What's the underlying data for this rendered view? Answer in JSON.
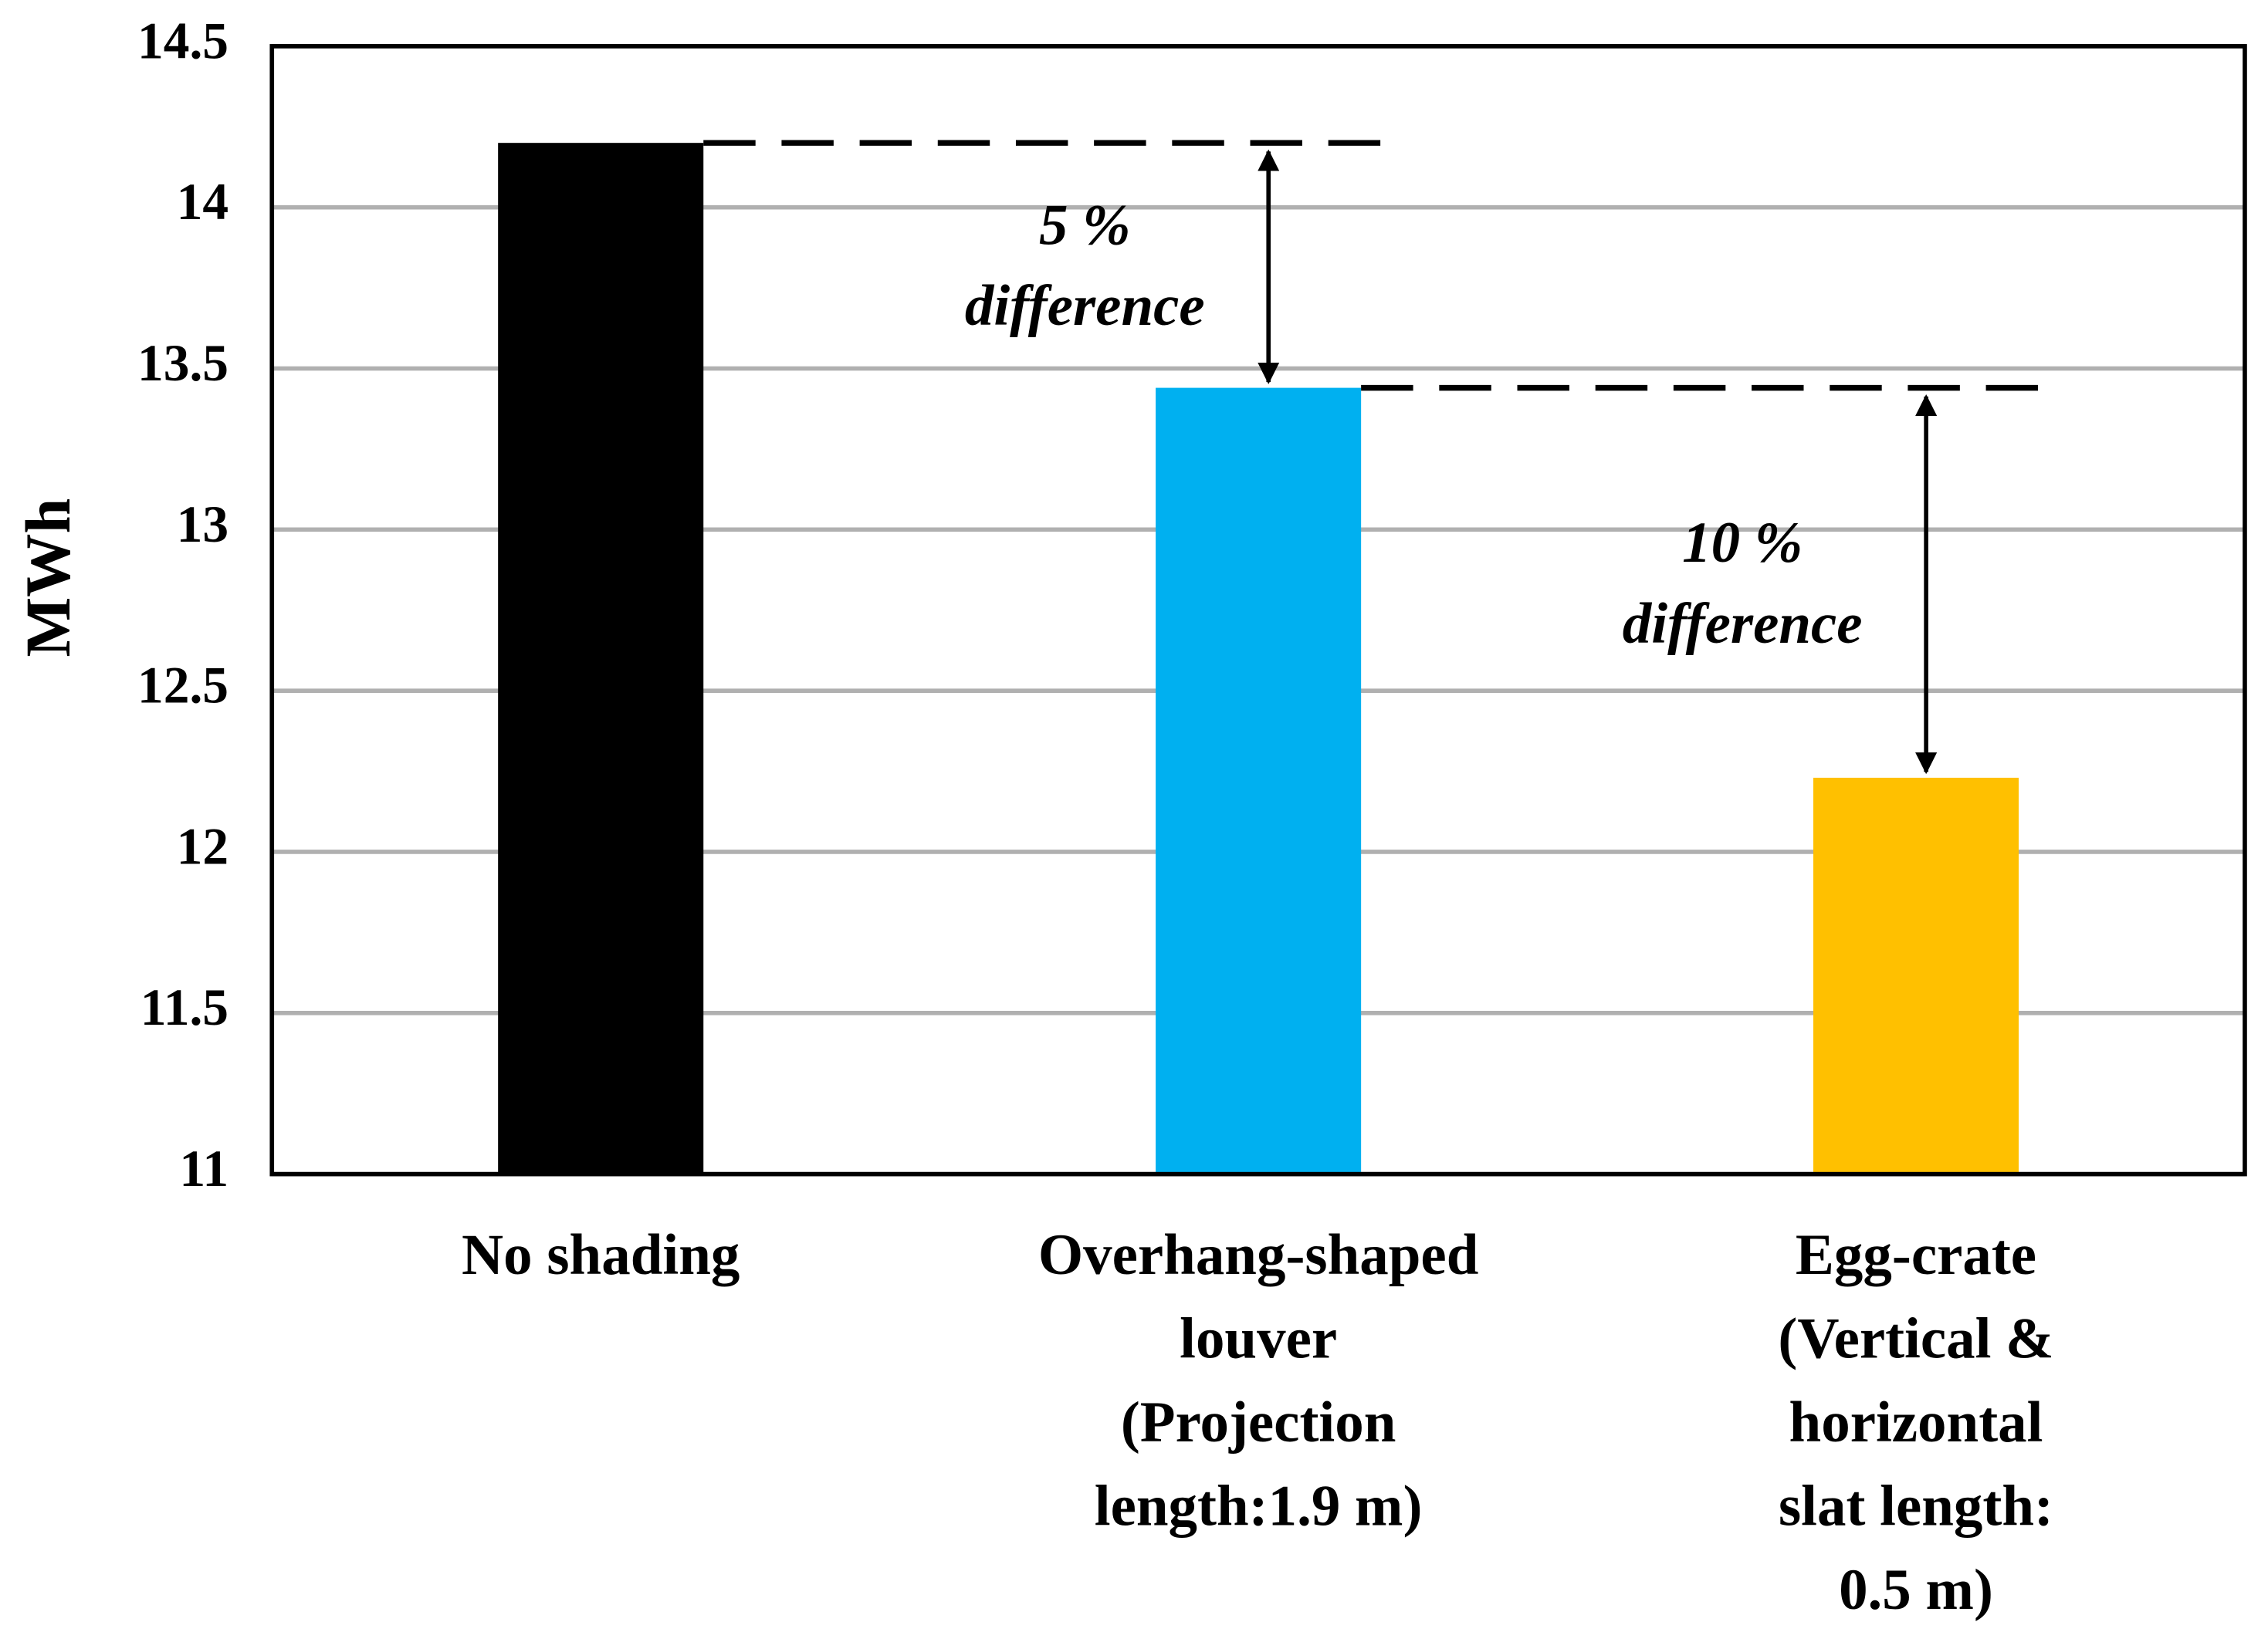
{
  "chart_data": {
    "type": "bar",
    "y_label": "MWh",
    "categories": [
      "No shading",
      "Overhang-shaped\nlouver\n(Projection\nlength:1.9 m)",
      "Egg-crate\n(Vertical & horizontal\nslat length: 0.5 m)"
    ],
    "values": [
      14.2,
      13.44,
      12.23
    ],
    "colors": [
      "#000000",
      "#00b0f0",
      "#ffc000"
    ],
    "ylim": [
      11,
      14.5
    ],
    "yticks": [
      11,
      11.5,
      12,
      12.5,
      13,
      13.5,
      14,
      14.5
    ],
    "grid": true,
    "annotations": [
      "5 %\ndifference",
      "10 %\ndifference"
    ]
  }
}
